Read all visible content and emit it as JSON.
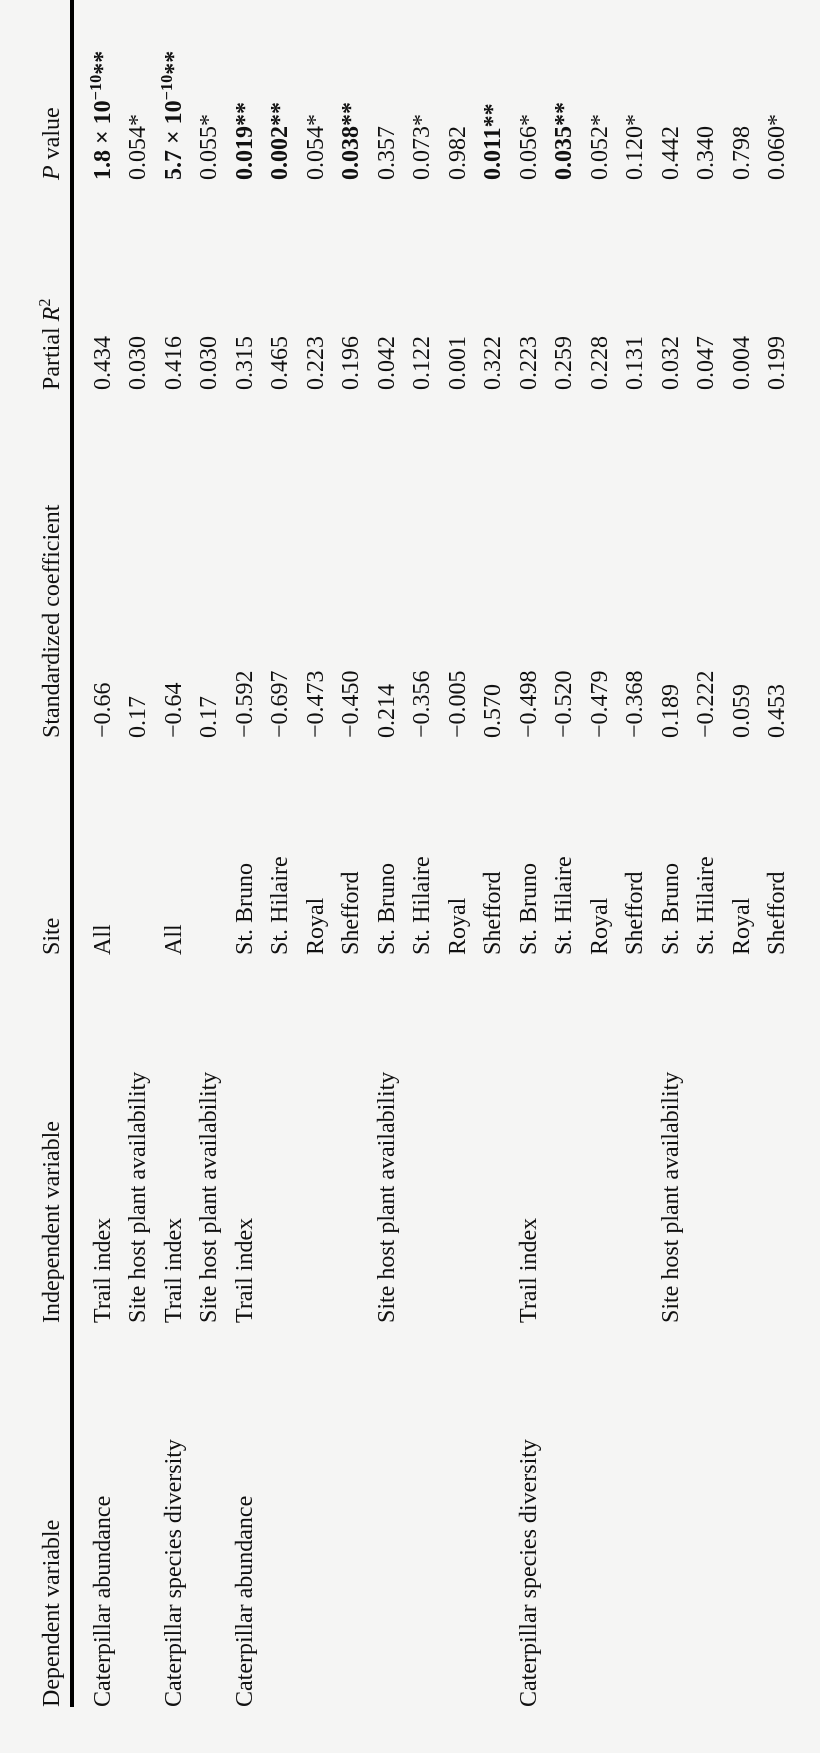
{
  "table": {
    "headers": {
      "dependent_variable": "Dependent variable",
      "independent_variable": "Independent variable",
      "site": "Site",
      "standardized_coefficient": "Standardized coefficient",
      "partial_r2": "Partial ~R~^2^",
      "p_value": "~P~ value"
    },
    "rows": [
      {
        "dependent_variable": "Caterpillar abundance",
        "independent_variable": "Trail index",
        "site": "All",
        "standardized_coefficient": "−0.66",
        "partial_r2": "0.434",
        "p_value": "1.8 × 10^−10^**",
        "p_bold": true
      },
      {
        "dependent_variable": "",
        "independent_variable": "Site host plant availability",
        "site": "",
        "standardized_coefficient": "0.17",
        "partial_r2": "0.030",
        "p_value": "0.054*",
        "p_bold": false
      },
      {
        "dependent_variable": "Caterpillar species diversity",
        "independent_variable": "Trail index",
        "site": "All",
        "standardized_coefficient": "−0.64",
        "partial_r2": "0.416",
        "p_value": "5.7 × 10^−10^**",
        "p_bold": true
      },
      {
        "dependent_variable": "",
        "independent_variable": "Site host plant availability",
        "site": "",
        "standardized_coefficient": "0.17",
        "partial_r2": "0.030",
        "p_value": "0.055*",
        "p_bold": false
      },
      {
        "dependent_variable": "Caterpillar abundance",
        "independent_variable": "Trail index",
        "site": "St. Bruno",
        "standardized_coefficient": "−0.592",
        "partial_r2": "0.315",
        "p_value": "0.019**",
        "p_bold": true
      },
      {
        "dependent_variable": "",
        "independent_variable": "",
        "site": "St. Hilaire",
        "standardized_coefficient": "−0.697",
        "partial_r2": "0.465",
        "p_value": "0.002**",
        "p_bold": true
      },
      {
        "dependent_variable": "",
        "independent_variable": "",
        "site": "Royal",
        "standardized_coefficient": "−0.473",
        "partial_r2": "0.223",
        "p_value": "0.054*",
        "p_bold": false
      },
      {
        "dependent_variable": "",
        "independent_variable": "",
        "site": "Shefford",
        "standardized_coefficient": "−0.450",
        "partial_r2": "0.196",
        "p_value": "0.038**",
        "p_bold": true
      },
      {
        "dependent_variable": "",
        "independent_variable": "Site host plant availability",
        "site": "St. Bruno",
        "standardized_coefficient": "0.214",
        "partial_r2": "0.042",
        "p_value": "0.357",
        "p_bold": false
      },
      {
        "dependent_variable": "",
        "independent_variable": "",
        "site": "St. Hilaire",
        "standardized_coefficient": "−0.356",
        "partial_r2": "0.122",
        "p_value": "0.073*",
        "p_bold": false
      },
      {
        "dependent_variable": "",
        "independent_variable": "",
        "site": "Royal",
        "standardized_coefficient": "−0.005",
        "partial_r2": "0.001",
        "p_value": "0.982",
        "p_bold": false
      },
      {
        "dependent_variable": "",
        "independent_variable": "",
        "site": "Shefford",
        "standardized_coefficient": "0.570",
        "partial_r2": "0.322",
        "p_value": "0.011**",
        "p_bold": true
      },
      {
        "dependent_variable": "Caterpillar species diversity",
        "independent_variable": "Trail index",
        "site": "St. Bruno",
        "standardized_coefficient": "−0.498",
        "partial_r2": "0.223",
        "p_value": "0.056*",
        "p_bold": false
      },
      {
        "dependent_variable": "",
        "independent_variable": "",
        "site": "St. Hilaire",
        "standardized_coefficient": "−0.520",
        "partial_r2": "0.259",
        "p_value": "0.035**",
        "p_bold": true
      },
      {
        "dependent_variable": "",
        "independent_variable": "",
        "site": "Royal",
        "standardized_coefficient": "−0.479",
        "partial_r2": "0.228",
        "p_value": "0.052*",
        "p_bold": false
      },
      {
        "dependent_variable": "",
        "independent_variable": "",
        "site": "Shefford",
        "standardized_coefficient": "−0.368",
        "partial_r2": "0.131",
        "p_value": "0.120*",
        "p_bold": false
      },
      {
        "dependent_variable": "",
        "independent_variable": "Site host plant availability",
        "site": "St. Bruno",
        "standardized_coefficient": "0.189",
        "partial_r2": "0.032",
        "p_value": "0.442",
        "p_bold": false
      },
      {
        "dependent_variable": "",
        "independent_variable": "",
        "site": "St. Hilaire",
        "standardized_coefficient": "−0.222",
        "partial_r2": "0.047",
        "p_value": "0.340",
        "p_bold": false
      },
      {
        "dependent_variable": "",
        "independent_variable": "",
        "site": "Royal",
        "standardized_coefficient": "0.059",
        "partial_r2": "0.004",
        "p_value": "0.798",
        "p_bold": false
      },
      {
        "dependent_variable": "",
        "independent_variable": "",
        "site": "Shefford",
        "standardized_coefficient": "0.453",
        "partial_r2": "0.199",
        "p_value": "0.060*",
        "p_bold": false
      }
    ],
    "colors": {
      "background": "#f5f5f4",
      "text": "#111111",
      "rule": "#000000"
    }
  }
}
